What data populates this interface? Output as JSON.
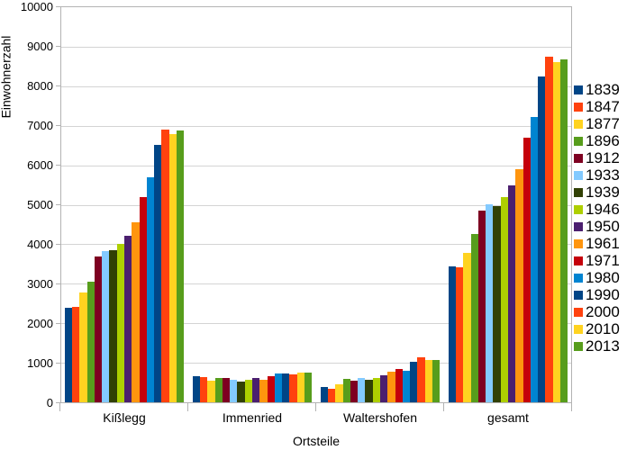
{
  "chart_data": {
    "type": "bar",
    "title": "",
    "xlabel": "Ortsteile",
    "ylabel": "Einwohnerzahl",
    "ylim": [
      0,
      10000
    ],
    "ytick_step": 1000,
    "y_tick_labels": [
      "0",
      "1000",
      "2000",
      "3000",
      "4000",
      "5000",
      "6000",
      "7000",
      "8000",
      "9000",
      "10000"
    ],
    "categories": [
      "Kißlegg",
      "Immenried",
      "Waltershofen",
      "gesamt"
    ],
    "grid": true,
    "legend_position": "right",
    "series": [
      {
        "name": "1839",
        "color": "#004586",
        "values": [
          2390,
          660,
          390,
          3440
        ]
      },
      {
        "name": "1847",
        "color": "#FF420E",
        "values": [
          2420,
          645,
          350,
          3415
        ]
      },
      {
        "name": "1877",
        "color": "#FFD320",
        "values": [
          2770,
          550,
          455,
          3775
        ]
      },
      {
        "name": "1896",
        "color": "#579D1C",
        "values": [
          3060,
          610,
          590,
          4260
        ]
      },
      {
        "name": "1912",
        "color": "#7E0021",
        "values": [
          3700,
          610,
          545,
          4855
        ]
      },
      {
        "name": "1933",
        "color": "#83CAFF",
        "values": [
          3830,
          575,
          605,
          5010
        ]
      },
      {
        "name": "1939",
        "color": "#314004",
        "values": [
          3860,
          525,
          570,
          4955
        ]
      },
      {
        "name": "1946",
        "color": "#AECF00",
        "values": [
          4010,
          570,
          605,
          5185
        ]
      },
      {
        "name": "1950",
        "color": "#4B1F6F",
        "values": [
          4210,
          610,
          680,
          5500
        ]
      },
      {
        "name": "1961",
        "color": "#FF950E",
        "values": [
          4560,
          575,
          770,
          5905
        ]
      },
      {
        "name": "1971",
        "color": "#C5000B",
        "values": [
          5200,
          655,
          840,
          6695
        ]
      },
      {
        "name": "1980",
        "color": "#0084D1",
        "values": [
          5700,
          725,
          800,
          7225
        ]
      },
      {
        "name": "1990",
        "color": "#004586",
        "values": [
          6510,
          725,
          1020,
          8255
        ]
      },
      {
        "name": "2000",
        "color": "#FF420E",
        "values": [
          6900,
          705,
          1150,
          8755
        ]
      },
      {
        "name": "2010",
        "color": "#FFD320",
        "values": [
          6790,
          745,
          1070,
          8605
        ]
      },
      {
        "name": "2013",
        "color": "#579D1C",
        "values": [
          6880,
          745,
          1065,
          8690
        ]
      }
    ]
  },
  "colors": {
    "background": "#ffffff",
    "grid": "#d4d4d4",
    "axis": "#b3b3b3",
    "text": "#000000"
  }
}
